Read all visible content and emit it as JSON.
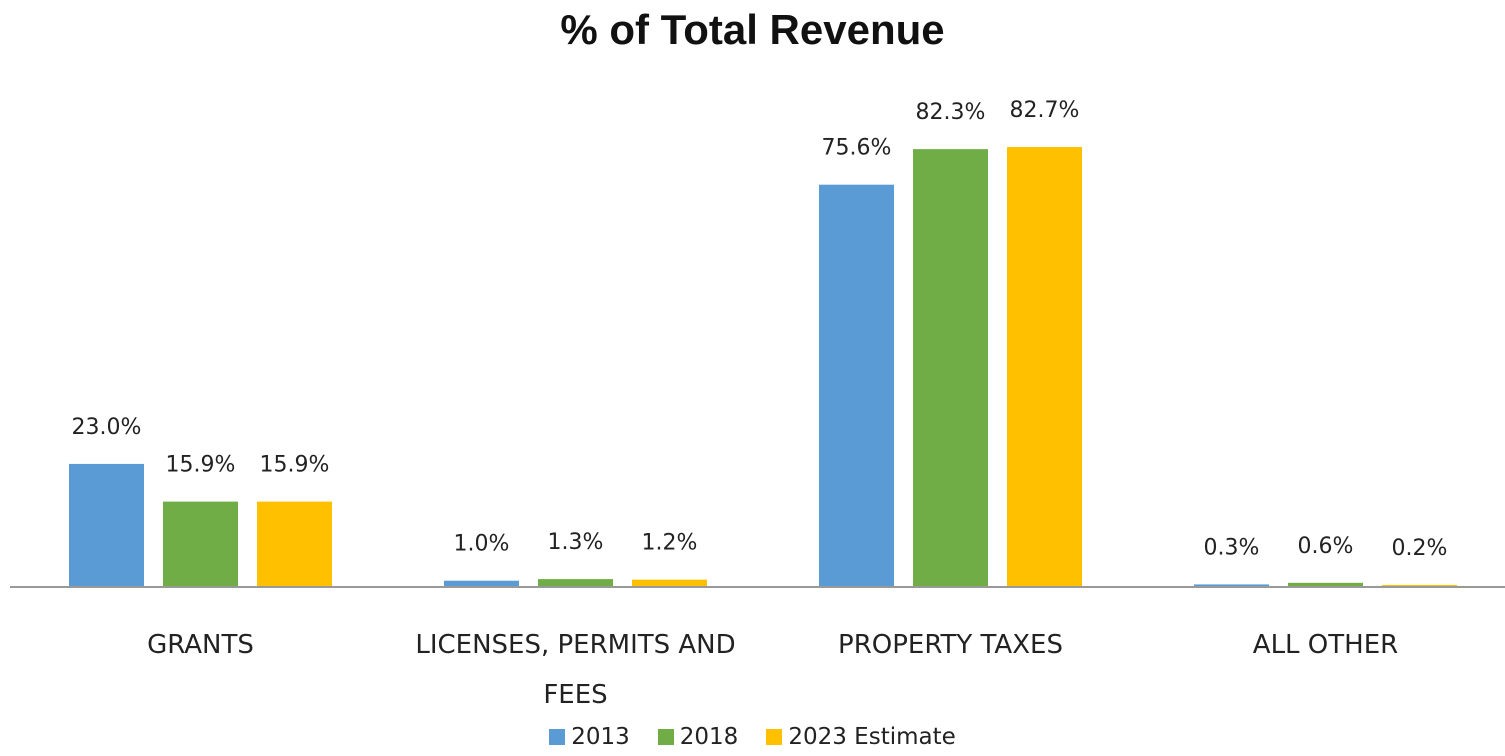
{
  "chart_data": {
    "type": "bar",
    "title": "% of Total Revenue",
    "categories": [
      "GRANTS",
      "LICENSES, PERMITS AND FEES",
      "PROPERTY TAXES",
      "ALL OTHER"
    ],
    "series": [
      {
        "name": "2013",
        "color": "#5b9bd5",
        "values": [
          23.0,
          1.0,
          75.6,
          0.3
        ],
        "value_labels": [
          "23.0%",
          "1.0%",
          "75.6%",
          "0.3%"
        ]
      },
      {
        "name": "2018",
        "color": "#70ad47",
        "values": [
          15.9,
          1.3,
          82.3,
          0.6
        ],
        "value_labels": [
          "15.9%",
          "1.3%",
          "82.3%",
          "0.6%"
        ]
      },
      {
        "name": "2023 Estimate",
        "color": "#ffc000",
        "values": [
          15.9,
          1.2,
          82.7,
          0.2
        ],
        "value_labels": [
          "15.9%",
          "1.2%",
          "82.7%",
          "0.2%"
        ]
      }
    ]
  }
}
